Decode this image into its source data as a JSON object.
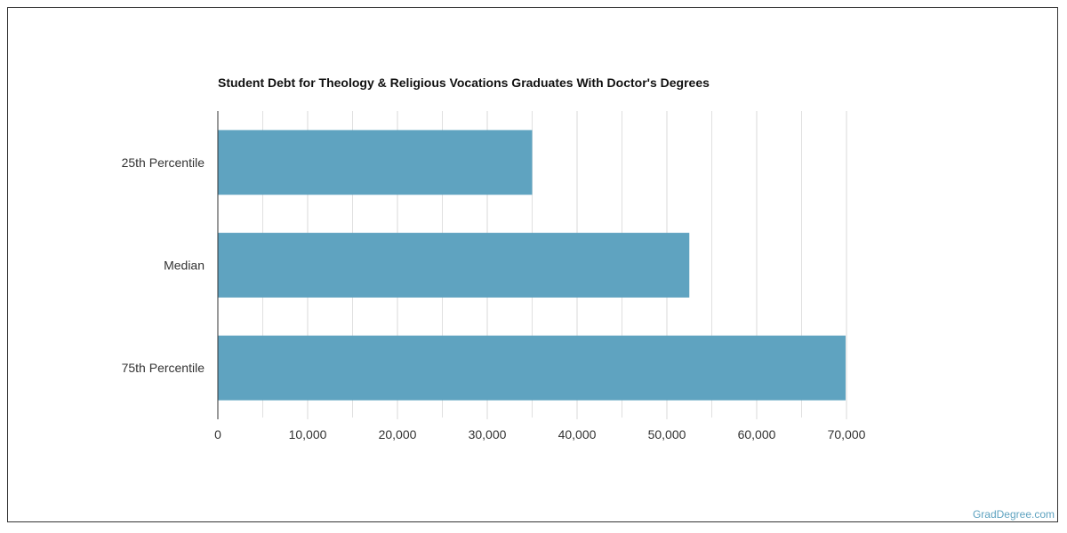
{
  "chart_data": {
    "type": "bar",
    "orientation": "horizontal",
    "title": "Student Debt for Theology & Religious Vocations Graduates With Doctor's Degrees",
    "categories": [
      "25th Percentile",
      "Median",
      "75th Percentile"
    ],
    "values": [
      35000,
      52500,
      69900
    ],
    "xlim": [
      0,
      70000
    ],
    "x_ticks": [
      0,
      10000,
      20000,
      30000,
      40000,
      50000,
      60000,
      70000
    ],
    "x_tick_labels": [
      "0",
      "10,000",
      "20,000",
      "30,000",
      "40,000",
      "50,000",
      "60,000",
      "70,000"
    ],
    "xlabel": "",
    "ylabel": "",
    "grid": true,
    "bar_color": "#5fa3c0",
    "grid_color": "#e0e0e0"
  },
  "footer": {
    "source": "GradDegree.com"
  }
}
